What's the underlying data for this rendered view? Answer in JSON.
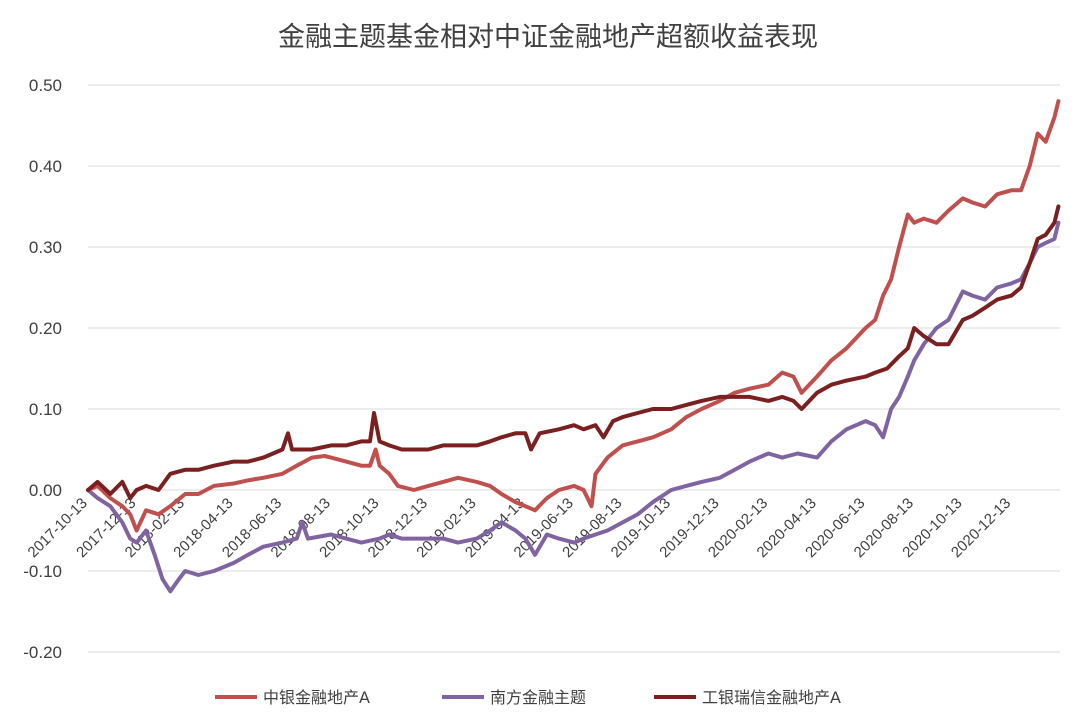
{
  "chart_data": {
    "type": "line",
    "title": "金融主题基金相对中证金融地产超额收益表现",
    "xlabel": "",
    "ylabel": "",
    "ylim": [
      -0.2,
      0.5
    ],
    "y_ticks": [
      "-0.20",
      "-0.10",
      "0.00",
      "0.10",
      "0.20",
      "0.30",
      "0.40",
      "0.50"
    ],
    "x_ticks": [
      "2017-10-13",
      "2017-12-13",
      "2018-02-13",
      "2018-04-13",
      "2018-06-13",
      "2018-08-13",
      "2018-10-13",
      "2018-12-13",
      "2019-02-13",
      "2019-04-13",
      "2019-06-13",
      "2019-08-13",
      "2019-10-13",
      "2019-12-13",
      "2020-02-13",
      "2020-04-13",
      "2020-06-13",
      "2020-08-13",
      "2020-10-13",
      "2020-12-13"
    ],
    "grid": true,
    "legend_position": "bottom",
    "series": [
      {
        "name": "中银金融地产A",
        "color": "#c0504d",
        "points": [
          [
            "2017-10-13",
            0.0
          ],
          [
            "2017-10-25",
            0.005
          ],
          [
            "2017-11-10",
            -0.01
          ],
          [
            "2017-11-25",
            -0.02
          ],
          [
            "2017-12-05",
            -0.03
          ],
          [
            "2017-12-13",
            -0.05
          ],
          [
            "2017-12-25",
            -0.025
          ],
          [
            "2018-01-10",
            -0.03
          ],
          [
            "2018-01-25",
            -0.02
          ],
          [
            "2018-02-13",
            -0.005
          ],
          [
            "2018-03-01",
            -0.005
          ],
          [
            "2018-03-20",
            0.005
          ],
          [
            "2018-04-13",
            0.008
          ],
          [
            "2018-05-01",
            0.012
          ],
          [
            "2018-05-20",
            0.015
          ],
          [
            "2018-06-13",
            0.02
          ],
          [
            "2018-07-01",
            0.03
          ],
          [
            "2018-07-20",
            0.04
          ],
          [
            "2018-08-05",
            0.042
          ],
          [
            "2018-08-13",
            0.04
          ],
          [
            "2018-09-01",
            0.035
          ],
          [
            "2018-09-20",
            0.03
          ],
          [
            "2018-10-01",
            0.03
          ],
          [
            "2018-10-08",
            0.05
          ],
          [
            "2018-10-13",
            0.03
          ],
          [
            "2018-10-25",
            0.02
          ],
          [
            "2018-11-05",
            0.005
          ],
          [
            "2018-11-25",
            0.0
          ],
          [
            "2018-12-13",
            0.005
          ],
          [
            "2019-01-01",
            0.01
          ],
          [
            "2019-01-20",
            0.015
          ],
          [
            "2019-02-13",
            0.01
          ],
          [
            "2019-03-01",
            0.005
          ],
          [
            "2019-03-15",
            -0.005
          ],
          [
            "2019-04-01",
            -0.015
          ],
          [
            "2019-04-13",
            -0.02
          ],
          [
            "2019-04-25",
            -0.025
          ],
          [
            "2019-05-10",
            -0.01
          ],
          [
            "2019-05-25",
            0.0
          ],
          [
            "2019-06-13",
            0.005
          ],
          [
            "2019-06-25",
            0.0
          ],
          [
            "2019-07-05",
            -0.02
          ],
          [
            "2019-07-10",
            0.02
          ],
          [
            "2019-07-25",
            0.04
          ],
          [
            "2019-08-13",
            0.055
          ],
          [
            "2019-09-01",
            0.06
          ],
          [
            "2019-09-20",
            0.065
          ],
          [
            "2019-10-13",
            0.075
          ],
          [
            "2019-11-01",
            0.09
          ],
          [
            "2019-11-20",
            0.1
          ],
          [
            "2019-12-13",
            0.11
          ],
          [
            "2020-01-01",
            0.12
          ],
          [
            "2020-01-20",
            0.125
          ],
          [
            "2020-02-13",
            0.13
          ],
          [
            "2020-03-01",
            0.145
          ],
          [
            "2020-03-15",
            0.14
          ],
          [
            "2020-03-25",
            0.12
          ],
          [
            "2020-04-13",
            0.14
          ],
          [
            "2020-05-01",
            0.16
          ],
          [
            "2020-05-20",
            0.175
          ],
          [
            "2020-06-13",
            0.2
          ],
          [
            "2020-06-25",
            0.21
          ],
          [
            "2020-07-05",
            0.24
          ],
          [
            "2020-07-15",
            0.26
          ],
          [
            "2020-07-25",
            0.3
          ],
          [
            "2020-08-05",
            0.34
          ],
          [
            "2020-08-13",
            0.33
          ],
          [
            "2020-08-25",
            0.335
          ],
          [
            "2020-09-10",
            0.33
          ],
          [
            "2020-09-25",
            0.345
          ],
          [
            "2020-10-13",
            0.36
          ],
          [
            "2020-10-25",
            0.355
          ],
          [
            "2020-11-10",
            0.35
          ],
          [
            "2020-11-25",
            0.365
          ],
          [
            "2020-12-13",
            0.37
          ],
          [
            "2020-12-25",
            0.37
          ],
          [
            "2021-01-05",
            0.4
          ],
          [
            "2021-01-15",
            0.44
          ],
          [
            "2021-01-25",
            0.43
          ],
          [
            "2021-02-05",
            0.46
          ],
          [
            "2021-02-10",
            0.48
          ]
        ]
      },
      {
        "name": "南方金融主题",
        "color": "#8064a2",
        "points": [
          [
            "2017-10-13",
            0.0
          ],
          [
            "2017-10-25",
            -0.01
          ],
          [
            "2017-11-10",
            -0.02
          ],
          [
            "2017-11-25",
            -0.04
          ],
          [
            "2017-12-05",
            -0.06
          ],
          [
            "2017-12-13",
            -0.065
          ],
          [
            "2017-12-25",
            -0.05
          ],
          [
            "2018-01-05",
            -0.08
          ],
          [
            "2018-01-15",
            -0.11
          ],
          [
            "2018-01-25",
            -0.125
          ],
          [
            "2018-02-05",
            -0.11
          ],
          [
            "2018-02-13",
            -0.1
          ],
          [
            "2018-03-01",
            -0.105
          ],
          [
            "2018-03-20",
            -0.1
          ],
          [
            "2018-04-13",
            -0.09
          ],
          [
            "2018-05-01",
            -0.08
          ],
          [
            "2018-05-20",
            -0.07
          ],
          [
            "2018-06-13",
            -0.065
          ],
          [
            "2018-07-01",
            -0.06
          ],
          [
            "2018-07-08",
            -0.04
          ],
          [
            "2018-07-15",
            -0.06
          ],
          [
            "2018-08-13",
            -0.055
          ],
          [
            "2018-09-01",
            -0.06
          ],
          [
            "2018-09-20",
            -0.065
          ],
          [
            "2018-10-13",
            -0.06
          ],
          [
            "2018-10-25",
            -0.055
          ],
          [
            "2018-11-10",
            -0.06
          ],
          [
            "2018-12-13",
            -0.06
          ],
          [
            "2019-01-01",
            -0.06
          ],
          [
            "2019-01-20",
            -0.065
          ],
          [
            "2019-02-13",
            -0.06
          ],
          [
            "2019-03-01",
            -0.05
          ],
          [
            "2019-03-15",
            -0.04
          ],
          [
            "2019-04-01",
            -0.05
          ],
          [
            "2019-04-13",
            -0.06
          ],
          [
            "2019-04-25",
            -0.08
          ],
          [
            "2019-05-10",
            -0.055
          ],
          [
            "2019-05-25",
            -0.06
          ],
          [
            "2019-06-13",
            -0.065
          ],
          [
            "2019-06-25",
            -0.06
          ],
          [
            "2019-07-10",
            -0.055
          ],
          [
            "2019-07-25",
            -0.05
          ],
          [
            "2019-08-13",
            -0.04
          ],
          [
            "2019-09-01",
            -0.03
          ],
          [
            "2019-09-20",
            -0.015
          ],
          [
            "2019-10-13",
            0.0
          ],
          [
            "2019-11-01",
            0.005
          ],
          [
            "2019-11-20",
            0.01
          ],
          [
            "2019-12-13",
            0.015
          ],
          [
            "2020-01-01",
            0.025
          ],
          [
            "2020-01-20",
            0.035
          ],
          [
            "2020-02-13",
            0.045
          ],
          [
            "2020-03-01",
            0.04
          ],
          [
            "2020-03-20",
            0.045
          ],
          [
            "2020-04-13",
            0.04
          ],
          [
            "2020-05-01",
            0.06
          ],
          [
            "2020-05-20",
            0.075
          ],
          [
            "2020-06-13",
            0.085
          ],
          [
            "2020-06-25",
            0.08
          ],
          [
            "2020-07-05",
            0.065
          ],
          [
            "2020-07-15",
            0.1
          ],
          [
            "2020-07-25",
            0.115
          ],
          [
            "2020-08-05",
            0.14
          ],
          [
            "2020-08-13",
            0.16
          ],
          [
            "2020-08-25",
            0.18
          ],
          [
            "2020-09-10",
            0.2
          ],
          [
            "2020-09-25",
            0.21
          ],
          [
            "2020-10-13",
            0.245
          ],
          [
            "2020-10-25",
            0.24
          ],
          [
            "2020-11-10",
            0.235
          ],
          [
            "2020-11-25",
            0.25
          ],
          [
            "2020-12-13",
            0.255
          ],
          [
            "2020-12-25",
            0.26
          ],
          [
            "2021-01-05",
            0.28
          ],
          [
            "2021-01-15",
            0.3
          ],
          [
            "2021-01-25",
            0.305
          ],
          [
            "2021-02-05",
            0.31
          ],
          [
            "2021-02-10",
            0.33
          ]
        ]
      },
      {
        "name": "工银瑞信金融地产A",
        "color": "#7b2020",
        "points": [
          [
            "2017-10-13",
            0.0
          ],
          [
            "2017-10-25",
            0.01
          ],
          [
            "2017-11-10",
            -0.005
          ],
          [
            "2017-11-25",
            0.01
          ],
          [
            "2017-12-05",
            -0.01
          ],
          [
            "2017-12-13",
            0.0
          ],
          [
            "2017-12-25",
            0.005
          ],
          [
            "2018-01-10",
            0.0
          ],
          [
            "2018-01-25",
            0.02
          ],
          [
            "2018-02-13",
            0.025
          ],
          [
            "2018-03-01",
            0.025
          ],
          [
            "2018-03-20",
            0.03
          ],
          [
            "2018-04-13",
            0.035
          ],
          [
            "2018-05-01",
            0.035
          ],
          [
            "2018-05-20",
            0.04
          ],
          [
            "2018-06-13",
            0.05
          ],
          [
            "2018-06-20",
            0.07
          ],
          [
            "2018-06-25",
            0.05
          ],
          [
            "2018-07-20",
            0.05
          ],
          [
            "2018-08-13",
            0.055
          ],
          [
            "2018-09-01",
            0.055
          ],
          [
            "2018-09-20",
            0.06
          ],
          [
            "2018-10-01",
            0.06
          ],
          [
            "2018-10-06",
            0.095
          ],
          [
            "2018-10-13",
            0.06
          ],
          [
            "2018-10-25",
            0.055
          ],
          [
            "2018-11-10",
            0.05
          ],
          [
            "2018-12-13",
            0.05
          ],
          [
            "2019-01-01",
            0.055
          ],
          [
            "2019-01-20",
            0.055
          ],
          [
            "2019-02-13",
            0.055
          ],
          [
            "2019-03-01",
            0.06
          ],
          [
            "2019-03-15",
            0.065
          ],
          [
            "2019-04-01",
            0.07
          ],
          [
            "2019-04-13",
            0.07
          ],
          [
            "2019-04-20",
            0.05
          ],
          [
            "2019-05-01",
            0.07
          ],
          [
            "2019-05-25",
            0.075
          ],
          [
            "2019-06-13",
            0.08
          ],
          [
            "2019-06-25",
            0.075
          ],
          [
            "2019-07-10",
            0.08
          ],
          [
            "2019-07-20",
            0.065
          ],
          [
            "2019-08-01",
            0.085
          ],
          [
            "2019-08-13",
            0.09
          ],
          [
            "2019-09-01",
            0.095
          ],
          [
            "2019-09-20",
            0.1
          ],
          [
            "2019-10-13",
            0.1
          ],
          [
            "2019-11-01",
            0.105
          ],
          [
            "2019-11-20",
            0.11
          ],
          [
            "2019-12-13",
            0.115
          ],
          [
            "2020-01-01",
            0.115
          ],
          [
            "2020-01-20",
            0.115
          ],
          [
            "2020-02-13",
            0.11
          ],
          [
            "2020-03-01",
            0.115
          ],
          [
            "2020-03-15",
            0.11
          ],
          [
            "2020-03-25",
            0.1
          ],
          [
            "2020-04-13",
            0.12
          ],
          [
            "2020-05-01",
            0.13
          ],
          [
            "2020-05-20",
            0.135
          ],
          [
            "2020-06-13",
            0.14
          ],
          [
            "2020-06-25",
            0.145
          ],
          [
            "2020-07-10",
            0.15
          ],
          [
            "2020-07-25",
            0.165
          ],
          [
            "2020-08-05",
            0.175
          ],
          [
            "2020-08-13",
            0.2
          ],
          [
            "2020-08-25",
            0.19
          ],
          [
            "2020-09-10",
            0.18
          ],
          [
            "2020-09-25",
            0.18
          ],
          [
            "2020-10-13",
            0.21
          ],
          [
            "2020-10-25",
            0.215
          ],
          [
            "2020-11-10",
            0.225
          ],
          [
            "2020-11-25",
            0.235
          ],
          [
            "2020-12-13",
            0.24
          ],
          [
            "2020-12-25",
            0.25
          ],
          [
            "2021-01-05",
            0.28
          ],
          [
            "2021-01-15",
            0.31
          ],
          [
            "2021-01-25",
            0.315
          ],
          [
            "2021-02-05",
            0.33
          ],
          [
            "2021-02-10",
            0.35
          ]
        ]
      }
    ]
  }
}
